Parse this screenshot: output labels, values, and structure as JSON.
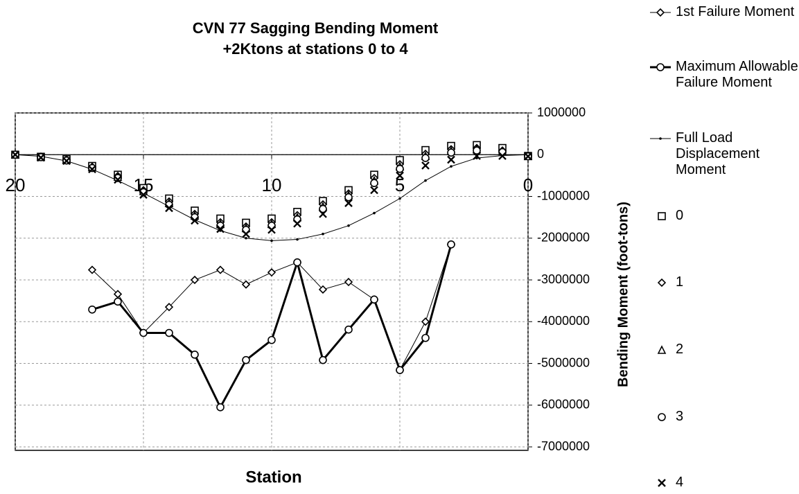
{
  "chart_data": {
    "type": "line",
    "title": "CVN 77 Sagging Bending Moment",
    "subtitle": "+2Ktons at stations 0 to 4",
    "x_label": "Station",
    "y_label": "Bending Moment (foot-tons)",
    "x": [
      20,
      19,
      18,
      17,
      16,
      15,
      14,
      13,
      12,
      11,
      10,
      9,
      8,
      7,
      6,
      5,
      4,
      3,
      2,
      1,
      0
    ],
    "xlim": [
      20,
      0
    ],
    "xticks": [
      20,
      15,
      10,
      5,
      0
    ],
    "ylim": [
      -7000000,
      1000000
    ],
    "yticks": [
      1000000,
      0,
      -1000000,
      -2000000,
      -3000000,
      -4000000,
      -5000000,
      -6000000,
      -7000000
    ],
    "grid": true,
    "legend": "right",
    "series": [
      {
        "name": "1st Failure Moment",
        "color": "#000000",
        "marker": "diamond",
        "line_width": 1,
        "values": [
          null,
          null,
          null,
          -2760000,
          -3340000,
          -4270000,
          -3650000,
          -3000000,
          -2760000,
          -3110000,
          -2820000,
          -2580000,
          -3230000,
          -3050000,
          -3470000,
          -5160000,
          -4000000,
          -2150000,
          null,
          null,
          null
        ]
      },
      {
        "name": "Maximum Allowable Failure Moment",
        "color": "#000000",
        "marker": "circle",
        "line_width": 3,
        "values": [
          null,
          null,
          null,
          -3710000,
          -3520000,
          -4270000,
          -4270000,
          -4790000,
          -6050000,
          -4920000,
          -4440000,
          -2580000,
          -4920000,
          -4190000,
          -3470000,
          -5160000,
          -4390000,
          -2150000,
          null,
          null,
          null
        ]
      },
      {
        "name": "Full Load Displacement Moment",
        "color": "#000000",
        "marker": "dot",
        "line_width": 1,
        "values": [
          0,
          -40000,
          -150000,
          -350000,
          -620000,
          -920000,
          -1240000,
          -1560000,
          -1820000,
          -2000000,
          -2060000,
          -2030000,
          -1900000,
          -1700000,
          -1400000,
          -1050000,
          -620000,
          -280000,
          -80000,
          -20000,
          0
        ]
      },
      {
        "name": "0",
        "color": "#000000",
        "marker": "square",
        "line_width": 0,
        "values": [
          0,
          -50000,
          -110000,
          -270000,
          -480000,
          -800000,
          -1050000,
          -1340000,
          -1530000,
          -1630000,
          -1530000,
          -1370000,
          -1110000,
          -850000,
          -480000,
          -130000,
          110000,
          210000,
          230000,
          160000,
          -30000
        ]
      },
      {
        "name": "1",
        "color": "#000000",
        "marker": "diamond",
        "line_width": 0,
        "values": [
          0,
          -50000,
          -120000,
          -290000,
          -510000,
          -850000,
          -1120000,
          -1420000,
          -1620000,
          -1720000,
          -1620000,
          -1450000,
          -1190000,
          -930000,
          -560000,
          -230000,
          20000,
          130000,
          160000,
          100000,
          -30000
        ]
      },
      {
        "name": "2",
        "color": "#000000",
        "marker": "triangle",
        "line_width": 0,
        "values": [
          0,
          -55000,
          -130000,
          -300000,
          -530000,
          -870000,
          -1160000,
          -1460000,
          -1660000,
          -1760000,
          -1660000,
          -1500000,
          -1240000,
          -970000,
          -620000,
          -280000,
          -30000,
          90000,
          130000,
          80000,
          -35000
        ]
      },
      {
        "name": "3",
        "color": "#000000",
        "marker": "circle",
        "line_width": 0,
        "values": [
          0,
          -60000,
          -140000,
          -320000,
          -560000,
          -900000,
          -1200000,
          -1500000,
          -1700000,
          -1800000,
          -1700000,
          -1550000,
          -1300000,
          -1020000,
          -680000,
          -340000,
          -80000,
          50000,
          100000,
          60000,
          -40000
        ]
      },
      {
        "name": "4",
        "color": "#000000",
        "marker": "x",
        "line_width": 0,
        "values": [
          0,
          -70000,
          -150000,
          -350000,
          -600000,
          -960000,
          -1280000,
          -1580000,
          -1780000,
          -1900000,
          -1800000,
          -1650000,
          -1420000,
          -1160000,
          -850000,
          -500000,
          -260000,
          -120000,
          -30000,
          -30000,
          -40000
        ]
      }
    ]
  }
}
